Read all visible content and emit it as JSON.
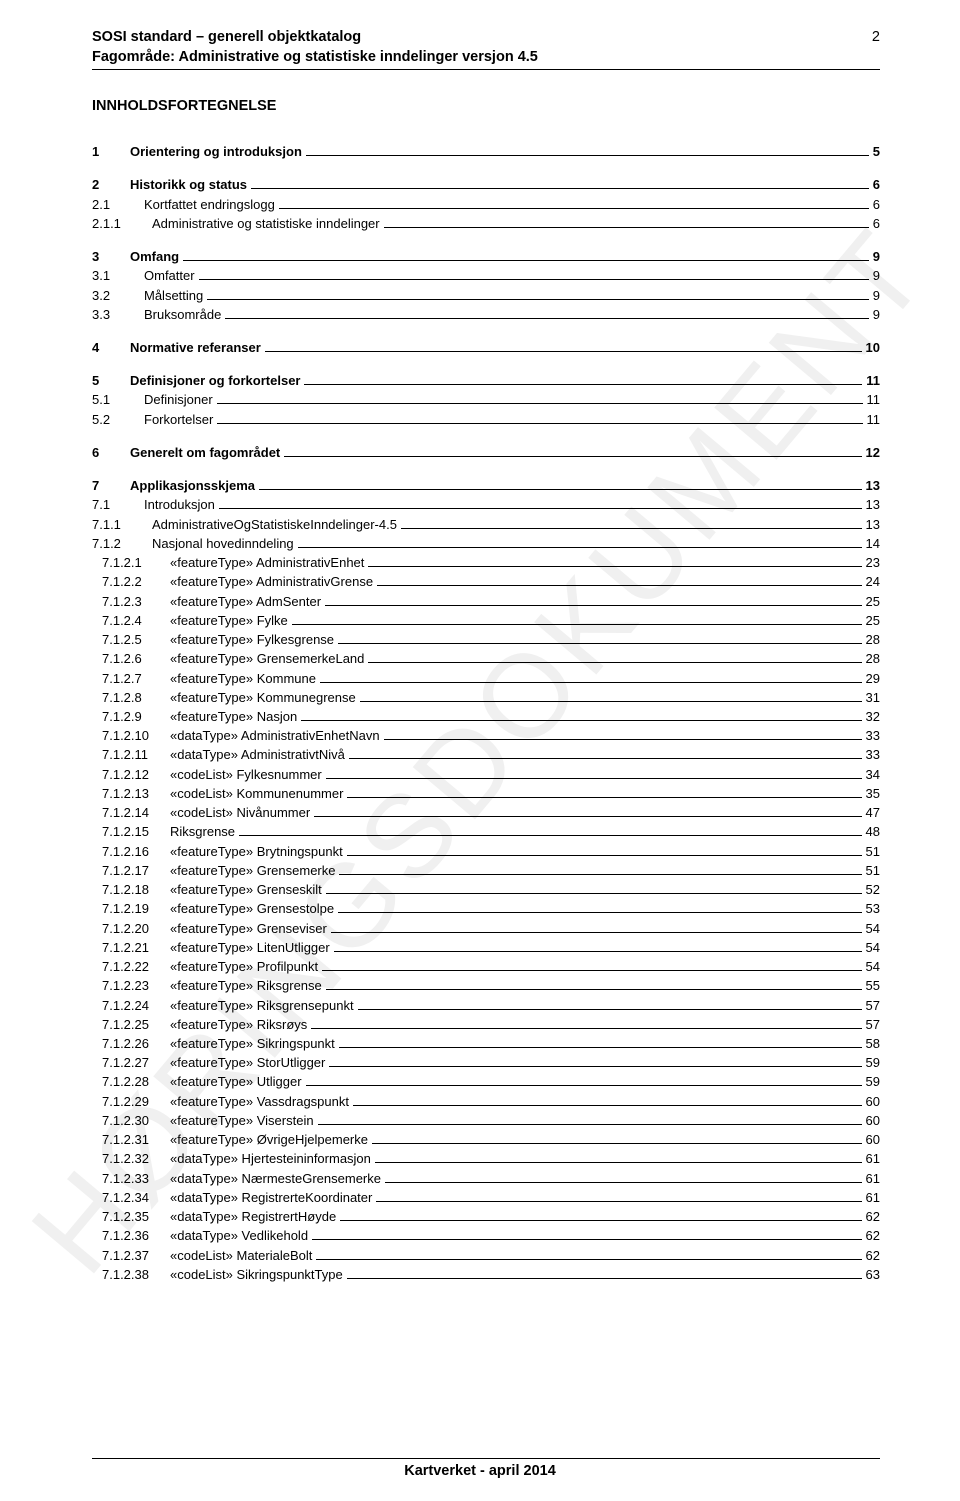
{
  "header": {
    "line1": "SOSI standard – generell objektkatalog",
    "line2": "Fagområde: Administrative og statistiske inndelinger versjon 4.5",
    "page_number": "2"
  },
  "watermark": "HØRINGSDOKUMENT",
  "toc_title": "INNHOLDSFORTEGNELSE",
  "footer": "Kartverket - april 2014",
  "toc": [
    {
      "lvl": 1,
      "num": "1",
      "label": "Orientering og introduksjon",
      "pg": "5"
    },
    {
      "lvl": 1,
      "num": "2",
      "label": "Historikk og status",
      "pg": "6"
    },
    {
      "lvl": 2,
      "num": "2.1",
      "label": "Kortfattet endringslogg",
      "pg": "6"
    },
    {
      "lvl": 3,
      "num": "2.1.1",
      "label": "Administrative og statistiske inndelinger",
      "pg": "6"
    },
    {
      "lvl": 1,
      "num": "3",
      "label": "Omfang",
      "pg": "9"
    },
    {
      "lvl": 2,
      "num": "3.1",
      "label": "Omfatter",
      "pg": "9"
    },
    {
      "lvl": 2,
      "num": "3.2",
      "label": "Målsetting",
      "pg": "9"
    },
    {
      "lvl": 2,
      "num": "3.3",
      "label": "Bruksområde",
      "pg": "9"
    },
    {
      "lvl": 1,
      "num": "4",
      "label": "Normative referanser",
      "pg": "10"
    },
    {
      "lvl": 1,
      "num": "5",
      "label": "Definisjoner og forkortelser",
      "pg": "11"
    },
    {
      "lvl": 2,
      "num": "5.1",
      "label": "Definisjoner",
      "pg": "11"
    },
    {
      "lvl": 2,
      "num": "5.2",
      "label": "Forkortelser",
      "pg": "11"
    },
    {
      "lvl": 1,
      "num": "6",
      "label": "Generelt om fagområdet",
      "pg": "12"
    },
    {
      "lvl": 1,
      "num": "7",
      "label": "Applikasjonsskjema",
      "pg": "13"
    },
    {
      "lvl": 2,
      "num": "7.1",
      "label": "Introduksjon",
      "pg": "13"
    },
    {
      "lvl": 3,
      "num": "7.1.1",
      "label": "AdministrativeOgStatistiskeInndelinger-4.5",
      "pg": "13"
    },
    {
      "lvl": 3,
      "num": "7.1.2",
      "label": "Nasjonal hovedinndeling",
      "pg": "14"
    },
    {
      "lvl": 4,
      "num": "7.1.2.1",
      "label": "«featureType» AdministrativEnhet",
      "pg": "23"
    },
    {
      "lvl": 4,
      "num": "7.1.2.2",
      "label": "«featureType» AdministrativGrense",
      "pg": "24"
    },
    {
      "lvl": 4,
      "num": "7.1.2.3",
      "label": "«featureType» AdmSenter",
      "pg": "25"
    },
    {
      "lvl": 4,
      "num": "7.1.2.4",
      "label": "«featureType» Fylke",
      "pg": "25"
    },
    {
      "lvl": 4,
      "num": "7.1.2.5",
      "label": "«featureType» Fylkesgrense",
      "pg": "28"
    },
    {
      "lvl": 4,
      "num": "7.1.2.6",
      "label": "«featureType» GrensemerkeLand",
      "pg": "28"
    },
    {
      "lvl": 4,
      "num": "7.1.2.7",
      "label": "«featureType» Kommune",
      "pg": "29"
    },
    {
      "lvl": 4,
      "num": "7.1.2.8",
      "label": "«featureType» Kommunegrense",
      "pg": "31"
    },
    {
      "lvl": 4,
      "num": "7.1.2.9",
      "label": "«featureType» Nasjon",
      "pg": "32"
    },
    {
      "lvl": 4,
      "num": "7.1.2.10",
      "label": "«dataType» AdministrativEnhetNavn",
      "pg": "33"
    },
    {
      "lvl": 4,
      "num": "7.1.2.11",
      "label": "«dataType» AdministrativtNivå",
      "pg": "33"
    },
    {
      "lvl": 4,
      "num": "7.1.2.12",
      "label": "«codeList» Fylkesnummer",
      "pg": "34"
    },
    {
      "lvl": 4,
      "num": "7.1.2.13",
      "label": "«codeList» Kommunenummer",
      "pg": "35"
    },
    {
      "lvl": 4,
      "num": "7.1.2.14",
      "label": "«codeList» Nivånummer",
      "pg": "47"
    },
    {
      "lvl": 4,
      "num": "7.1.2.15",
      "label": "Riksgrense",
      "pg": "48"
    },
    {
      "lvl": 4,
      "num": "7.1.2.16",
      "label": "«featureType» Brytningspunkt",
      "pg": "51"
    },
    {
      "lvl": 4,
      "num": "7.1.2.17",
      "label": "«featureType» Grensemerke",
      "pg": "51"
    },
    {
      "lvl": 4,
      "num": "7.1.2.18",
      "label": "«featureType» Grenseskilt",
      "pg": "52"
    },
    {
      "lvl": 4,
      "num": "7.1.2.19",
      "label": "«featureType» Grensestolpe",
      "pg": "53"
    },
    {
      "lvl": 4,
      "num": "7.1.2.20",
      "label": "«featureType» Grenseviser",
      "pg": "54"
    },
    {
      "lvl": 4,
      "num": "7.1.2.21",
      "label": "«featureType» LitenUtligger",
      "pg": "54"
    },
    {
      "lvl": 4,
      "num": "7.1.2.22",
      "label": "«featureType» Profilpunkt",
      "pg": "54"
    },
    {
      "lvl": 4,
      "num": "7.1.2.23",
      "label": "«featureType» Riksgrense",
      "pg": "55"
    },
    {
      "lvl": 4,
      "num": "7.1.2.24",
      "label": "«featureType» Riksgrensepunkt",
      "pg": "57"
    },
    {
      "lvl": 4,
      "num": "7.1.2.25",
      "label": "«featureType» Riksrøys",
      "pg": "57"
    },
    {
      "lvl": 4,
      "num": "7.1.2.26",
      "label": "«featureType» Sikringspunkt",
      "pg": "58"
    },
    {
      "lvl": 4,
      "num": "7.1.2.27",
      "label": "«featureType» StorUtligger",
      "pg": "59"
    },
    {
      "lvl": 4,
      "num": "7.1.2.28",
      "label": "«featureType» Utligger",
      "pg": "59"
    },
    {
      "lvl": 4,
      "num": "7.1.2.29",
      "label": "«featureType» Vassdragspunkt",
      "pg": "60"
    },
    {
      "lvl": 4,
      "num": "7.1.2.30",
      "label": "«featureType» Viserstein",
      "pg": "60"
    },
    {
      "lvl": 4,
      "num": "7.1.2.31",
      "label": "«featureType» ØvrigeHjelpemerke",
      "pg": "60"
    },
    {
      "lvl": 4,
      "num": "7.1.2.32",
      "label": "«dataType» Hjertesteininformasjon",
      "pg": "61"
    },
    {
      "lvl": 4,
      "num": "7.1.2.33",
      "label": "«dataType» NærmesteGrensemerke",
      "pg": "61"
    },
    {
      "lvl": 4,
      "num": "7.1.2.34",
      "label": "«dataType» RegistrerteKoordinater",
      "pg": "61"
    },
    {
      "lvl": 4,
      "num": "7.1.2.35",
      "label": "«dataType» RegistrertHøyde",
      "pg": "62"
    },
    {
      "lvl": 4,
      "num": "7.1.2.36",
      "label": "«dataType» Vedlikehold",
      "pg": "62"
    },
    {
      "lvl": 4,
      "num": "7.1.2.37",
      "label": "«codeList» MaterialeBolt",
      "pg": "62"
    },
    {
      "lvl": 4,
      "num": "7.1.2.38",
      "label": "«codeList» SikringspunktType",
      "pg": "63"
    }
  ]
}
